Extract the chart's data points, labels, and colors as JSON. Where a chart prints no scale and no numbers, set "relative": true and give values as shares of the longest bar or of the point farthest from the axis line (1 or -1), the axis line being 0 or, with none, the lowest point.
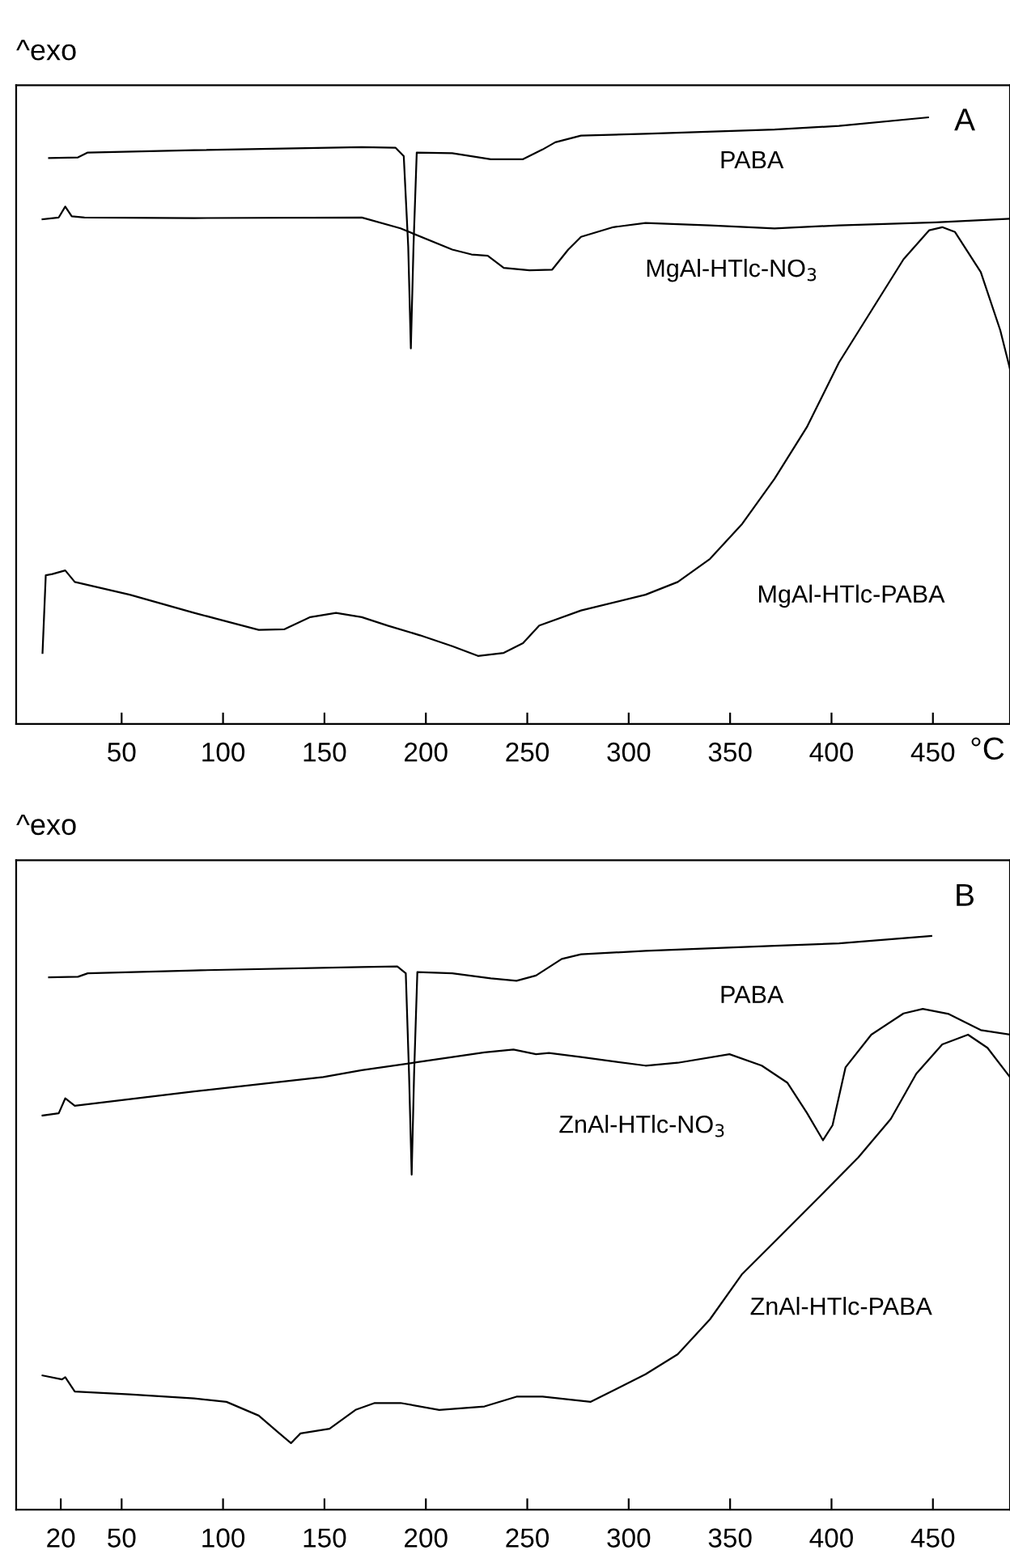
{
  "chart_data": [
    {
      "type": "line",
      "title": "A",
      "ylabel": "^exo",
      "xlabel": "°C",
      "relative": true,
      "xlim": [
        -2,
        488
      ],
      "xticks": [
        50,
        100,
        150,
        200,
        250,
        300,
        350,
        400,
        450
      ],
      "series": [
        {
          "name": "PABA",
          "color": "#000000",
          "x": [
            14.2,
            28.5,
            33.3,
            85.8,
            168.4,
            185.0,
            189.1,
            191.3,
            192.6,
            193.9,
            195.5,
            213.0,
            232.0,
            247.9,
            257.5,
            263.8,
            276.5,
            308.3,
            371.9,
            403.7,
            447.6
          ],
          "values": [
            0.933,
            0.934,
            0.942,
            0.946,
            0.951,
            0.95,
            0.936,
            0.787,
            0.619,
            0.787,
            0.942,
            0.941,
            0.931,
            0.931,
            0.947,
            0.959,
            0.97,
            0.973,
            0.98,
            0.986,
            1.0
          ]
        },
        {
          "name": "MgAl-HTlc-NO$_{3}$",
          "color": "#000000",
          "x": [
            11.0,
            19.0,
            22.2,
            25.4,
            31.7,
            85.8,
            168.4,
            187.5,
            213.0,
            222.5,
            230.5,
            238.4,
            251.1,
            262.3,
            270.2,
            276.5,
            292.4,
            308.3,
            340.1,
            371.9,
            403.7,
            451.4,
            488
          ],
          "values": [
            0.832,
            0.835,
            0.853,
            0.837,
            0.835,
            0.834,
            0.835,
            0.817,
            0.782,
            0.774,
            0.772,
            0.752,
            0.748,
            0.749,
            0.782,
            0.803,
            0.819,
            0.826,
            0.822,
            0.817,
            0.822,
            0.827,
            0.833
          ]
        },
        {
          "name": "MgAl-HTlc-PABA",
          "color": "#000000",
          "x": [
            11.0,
            12.6,
            15.8,
            22.2,
            26.9,
            54.0,
            85.8,
            117.6,
            130.3,
            143.0,
            155.7,
            168.4,
            181.2,
            197.1,
            213.0,
            225.7,
            238.4,
            247.9,
            255.9,
            276.5,
            308.3,
            324.2,
            340.1,
            356.0,
            371.9,
            387.8,
            403.7,
            419.6,
            435.5,
            448.2,
            454.6,
            460.9,
            473.6,
            483.2,
            488
          ],
          "values": [
            0.117,
            0.245,
            0.247,
            0.253,
            0.234,
            0.213,
            0.183,
            0.155,
            0.156,
            0.176,
            0.183,
            0.176,
            0.162,
            0.146,
            0.128,
            0.112,
            0.117,
            0.133,
            0.162,
            0.187,
            0.213,
            0.234,
            0.272,
            0.33,
            0.404,
            0.489,
            0.596,
            0.681,
            0.766,
            0.814,
            0.819,
            0.811,
            0.745,
            0.649,
            0.585
          ]
        }
      ]
    },
    {
      "type": "line",
      "title": "B",
      "ylabel": "^exo",
      "relative": true,
      "xlim": [
        -2,
        488
      ],
      "xticks": [
        20,
        50,
        100,
        150,
        200,
        250,
        300,
        350,
        400,
        450
      ],
      "series": [
        {
          "name": "PABA",
          "color": "#000000",
          "x": [
            14.2,
            28.5,
            33.3,
            85.8,
            168.4,
            185.9,
            190.1,
            191.7,
            193.0,
            194.2,
            195.8,
            213.0,
            232.0,
            244.7,
            254.3,
            267.0,
            276.5,
            308.3,
            371.9,
            403.7,
            449.2
          ],
          "values": [
            0.928,
            0.929,
            0.935,
            0.94,
            0.946,
            0.947,
            0.935,
            0.76,
            0.584,
            0.76,
            0.937,
            0.935,
            0.926,
            0.922,
            0.931,
            0.96,
            0.968,
            0.974,
            0.983,
            0.987,
            1.0
          ]
        },
        {
          "name": "ZnAl-HTlc-NO$_{3}$",
          "color": "#000000",
          "x": [
            11.0,
            19.0,
            22.2,
            26.9,
            85.8,
            149.4,
            168.4,
            193.9,
            228.9,
            243.2,
            254.3,
            260.7,
            276.5,
            308.3,
            324.2,
            349.7,
            365.6,
            378.3,
            387.8,
            395.8,
            400.5,
            406.9,
            419.6,
            435.5,
            445.0,
            457.8,
            473.6,
            488
          ],
          "values": [
            0.687,
            0.691,
            0.717,
            0.704,
            0.729,
            0.754,
            0.766,
            0.779,
            0.797,
            0.802,
            0.794,
            0.796,
            0.789,
            0.774,
            0.779,
            0.794,
            0.774,
            0.744,
            0.692,
            0.644,
            0.67,
            0.771,
            0.828,
            0.865,
            0.873,
            0.864,
            0.836,
            0.828
          ]
        },
        {
          "name": "ZnAl-HTlc-PABA",
          "color": "#000000",
          "x": [
            11.0,
            20.6,
            22.2,
            26.9,
            54.0,
            85.8,
            101.7,
            117.6,
            127.1,
            133.5,
            138.2,
            152.5,
            165.3,
            174.8,
            187.5,
            206.6,
            228.9,
            244.7,
            257.5,
            281.3,
            308.3,
            324.2,
            340.1,
            356.0,
            371.9,
            394.2,
            413.2,
            429.2,
            441.8,
            454.6,
            467.3,
            476.9,
            488
          ],
          "values": [
            0.234,
            0.227,
            0.231,
            0.206,
            0.201,
            0.194,
            0.188,
            0.164,
            0.135,
            0.116,
            0.133,
            0.141,
            0.174,
            0.186,
            0.186,
            0.174,
            0.18,
            0.197,
            0.197,
            0.188,
            0.236,
            0.271,
            0.332,
            0.411,
            0.467,
            0.546,
            0.614,
            0.681,
            0.76,
            0.811,
            0.828,
            0.805,
            0.754
          ]
        }
      ]
    }
  ]
}
